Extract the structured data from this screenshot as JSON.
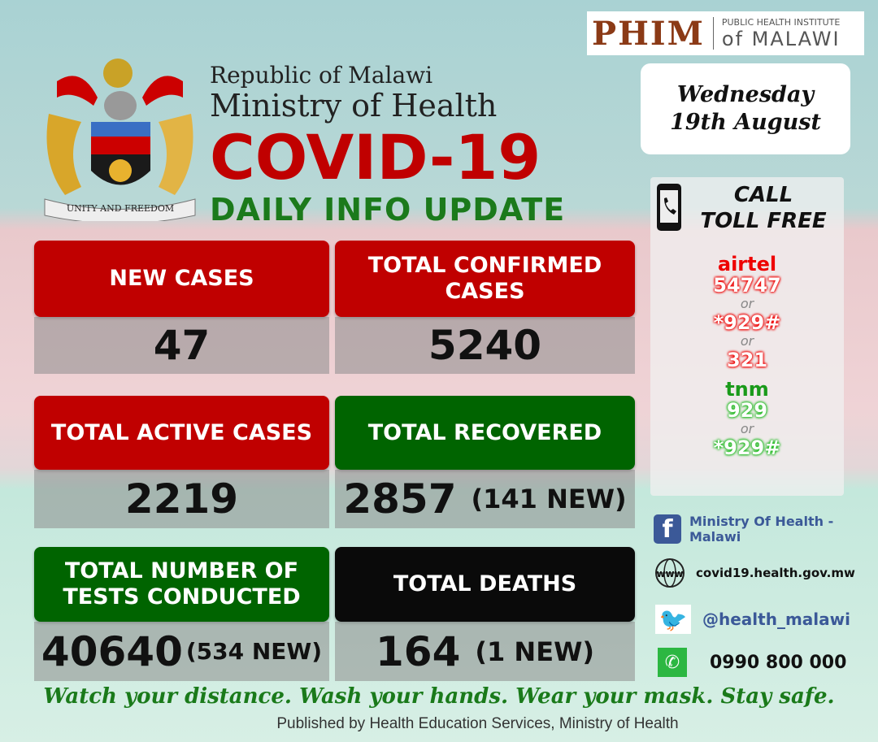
{
  "header": {
    "republic": "Republic of Malawi",
    "ministry": "Ministry of Health",
    "title": "COVID-19",
    "subtitle": "DAILY INFO UPDATE",
    "coat_of_arms_motto": "UNITY AND FREEDOM"
  },
  "logo": {
    "brand": "PHIM",
    "line1": "PUBLIC HEALTH INSTITUTE",
    "line2": "of MALAWI"
  },
  "date": {
    "day": "Wednesday",
    "date": "19th August"
  },
  "stats": [
    {
      "label": "NEW CASES",
      "value": "47",
      "extra": "",
      "color": "#c00000"
    },
    {
      "label": "TOTAL CONFIRMED CASES",
      "value": "5240",
      "extra": "",
      "color": "#c00000"
    },
    {
      "label": "TOTAL ACTIVE CASES",
      "value": "2219",
      "extra": "",
      "color": "#c00000"
    },
    {
      "label": "TOTAL RECOVERED",
      "value": "2857",
      "extra": "(141 NEW)",
      "color": "#006400"
    },
    {
      "label": "TOTAL NUMBER OF TESTS CONDUCTED",
      "value": "40640",
      "extra": "(534 NEW)",
      "color": "#006400"
    },
    {
      "label": "TOTAL DEATHS",
      "value": "164",
      "extra": "(1 NEW)",
      "color": "#0a0a0a"
    }
  ],
  "call": {
    "title1": "CALL",
    "title2": "TOLL FREE",
    "icon": "phone-icon",
    "airtel": {
      "name": "airtel",
      "numbers": [
        "54747",
        "*929#",
        "321"
      ]
    },
    "tnm": {
      "name": "tnm",
      "numbers": [
        "929",
        "*929#"
      ]
    },
    "or": "or"
  },
  "social": {
    "facebook": "Ministry Of Health - Malawi",
    "website": "covid19.health.gov.mw",
    "twitter": "@health_malawi",
    "whatsapp": "0990 800 000"
  },
  "footer": {
    "slogan": "Watch your distance. Wash your hands. Wear your mask. Stay safe.",
    "published": "Published by Health Education Services, Ministry of Health"
  }
}
